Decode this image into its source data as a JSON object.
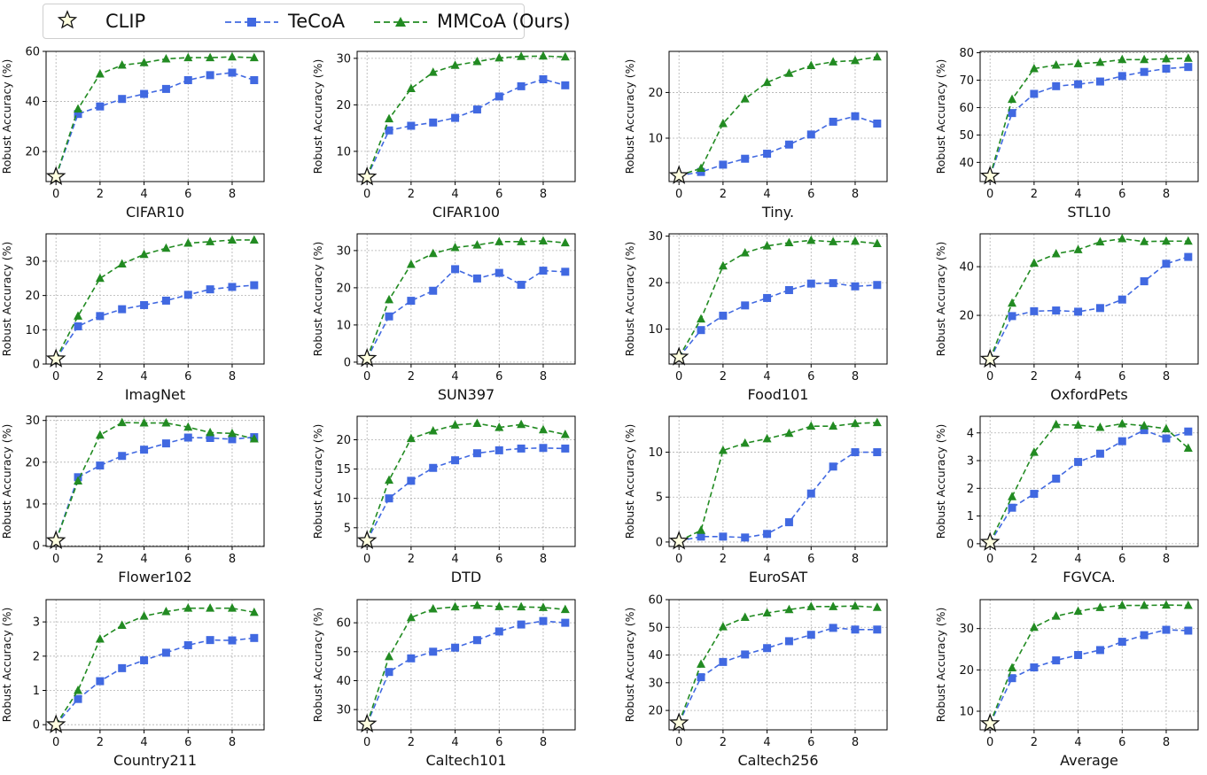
{
  "legend": {
    "clip": "CLIP",
    "tecoa": "TeCoA",
    "mmcoa": "MMCoA (Ours)"
  },
  "colors": {
    "tecoa": "#4169e1",
    "mmcoa": "#228b22",
    "clip_fill": "#ffffe0",
    "grid": "#b0b0b0"
  },
  "ylabel": "Robust Accuracy (%)",
  "chart_data": [
    {
      "type": "line",
      "title": "CIFAR10",
      "xlabel": "CIFAR10",
      "ylabel": "Robust Accuracy (%)",
      "x": [
        0,
        1,
        2,
        3,
        4,
        5,
        6,
        7,
        8,
        9
      ],
      "xlim": [
        -0.45,
        9.45
      ],
      "xticks": [
        0,
        2,
        4,
        6,
        8
      ],
      "ylim": [
        8,
        60
      ],
      "yticks": [
        20,
        40,
        60
      ],
      "clip": 10,
      "series": [
        {
          "name": "TeCoA",
          "values": [
            10,
            35,
            38,
            41,
            43,
            45,
            48.5,
            50.5,
            51.5,
            48.5
          ]
        },
        {
          "name": "MMCoA (Ours)",
          "values": [
            10,
            37,
            51,
            54.5,
            55.5,
            57,
            57.5,
            57.5,
            57.8,
            57.5
          ]
        }
      ]
    },
    {
      "type": "line",
      "title": "CIFAR100",
      "xlabel": "CIFAR100",
      "ylabel": "Robust Accuracy (%)",
      "x": [
        0,
        1,
        2,
        3,
        4,
        5,
        6,
        7,
        8,
        9
      ],
      "xlim": [
        -0.45,
        9.45
      ],
      "xticks": [
        0,
        2,
        4,
        6,
        8
      ],
      "ylim": [
        3.5,
        31.5
      ],
      "yticks": [
        10,
        20,
        30
      ],
      "clip": 4.5,
      "series": [
        {
          "name": "TeCoA",
          "values": [
            4.5,
            14.5,
            15.5,
            16.2,
            17.2,
            19,
            21.8,
            24,
            25.5,
            24.2
          ]
        },
        {
          "name": "MMCoA (Ours)",
          "values": [
            4.5,
            17,
            23.5,
            27,
            28.5,
            29.3,
            30.1,
            30.4,
            30.5,
            30.3
          ]
        }
      ]
    },
    {
      "type": "line",
      "title": "Tiny.",
      "xlabel": "Tiny.",
      "ylabel": "Robust Accuracy (%)",
      "x": [
        0,
        1,
        2,
        3,
        4,
        5,
        6,
        7,
        8,
        9
      ],
      "xlim": [
        -0.45,
        9.45
      ],
      "xticks": [
        0,
        2,
        4,
        6,
        8
      ],
      "ylim": [
        0.5,
        29
      ],
      "yticks": [
        10,
        20
      ],
      "clip": 1.8,
      "series": [
        {
          "name": "TeCoA",
          "values": [
            1.8,
            2.6,
            4.2,
            5.5,
            6.6,
            8.6,
            10.8,
            13.6,
            14.8,
            13.2
          ]
        },
        {
          "name": "MMCoA (Ours)",
          "values": [
            1.8,
            3.4,
            13.2,
            18.6,
            22.2,
            24.2,
            25.9,
            26.7,
            27,
            27.8
          ]
        }
      ]
    },
    {
      "type": "line",
      "title": "STL10",
      "xlabel": "STL10",
      "ylabel": "Robust Accuracy (%)",
      "x": [
        0,
        1,
        2,
        3,
        4,
        5,
        6,
        7,
        8,
        9
      ],
      "xlim": [
        -0.45,
        9.45
      ],
      "xticks": [
        0,
        2,
        4,
        6,
        8
      ],
      "ylim": [
        33,
        80.5
      ],
      "yticks": [
        40,
        50,
        60,
        70,
        80
      ],
      "clip": 35,
      "series": [
        {
          "name": "TeCoA",
          "values": [
            35,
            58,
            65,
            67.8,
            68.5,
            69.5,
            71.5,
            73,
            74.2,
            74.8
          ]
        },
        {
          "name": "MMCoA (Ours)",
          "values": [
            35,
            63,
            74.2,
            75.5,
            76,
            76.5,
            77.5,
            77.5,
            77.8,
            78
          ]
        }
      ]
    },
    {
      "type": "line",
      "title": "ImagNet",
      "xlabel": "ImagNet",
      "ylabel": "Robust Accuracy (%)",
      "x": [
        0,
        1,
        2,
        3,
        4,
        5,
        6,
        7,
        8,
        9
      ],
      "xlim": [
        -0.45,
        9.45
      ],
      "xticks": [
        0,
        2,
        4,
        6,
        8
      ],
      "ylim": [
        0,
        38
      ],
      "yticks": [
        0,
        10,
        20,
        30
      ],
      "clip": 1.5,
      "series": [
        {
          "name": "TeCoA",
          "values": [
            1.5,
            11,
            14,
            16,
            17.2,
            18.5,
            20.2,
            21.8,
            22.5,
            23
          ]
        },
        {
          "name": "MMCoA (Ours)",
          "values": [
            1.5,
            14,
            25,
            29.2,
            32,
            33.8,
            35.3,
            35.7,
            36.2,
            36.2
          ]
        }
      ]
    },
    {
      "type": "line",
      "title": "SUN397",
      "xlabel": "SUN397",
      "ylabel": "Robust Accuracy (%)",
      "x": [
        0,
        1,
        2,
        3,
        4,
        5,
        6,
        7,
        8,
        9
      ],
      "xlim": [
        -0.45,
        9.45
      ],
      "xticks": [
        0,
        2,
        4,
        6,
        8
      ],
      "ylim": [
        -0.5,
        34.5
      ],
      "yticks": [
        0,
        10,
        20,
        30
      ],
      "clip": 1.0,
      "series": [
        {
          "name": "TeCoA",
          "values": [
            1,
            12.3,
            16.5,
            19.2,
            25,
            22.5,
            24,
            20.8,
            24.6,
            24.3
          ]
        },
        {
          "name": "MMCoA (Ours)",
          "values": [
            1,
            16.8,
            26.3,
            29.2,
            30.8,
            31.5,
            32.4,
            32.4,
            32.6,
            32.1
          ]
        }
      ]
    },
    {
      "type": "line",
      "title": "Food101",
      "xlabel": "Food101",
      "ylabel": "Robust Accuracy (%)",
      "x": [
        0,
        1,
        2,
        3,
        4,
        5,
        6,
        7,
        8,
        9
      ],
      "xlim": [
        -0.45,
        9.45
      ],
      "xticks": [
        0,
        2,
        4,
        6,
        8
      ],
      "ylim": [
        2.5,
        30.5
      ],
      "yticks": [
        10,
        20,
        30
      ],
      "clip": 4,
      "series": [
        {
          "name": "TeCoA",
          "values": [
            4,
            9.8,
            12.9,
            15.1,
            16.7,
            18.4,
            19.8,
            19.9,
            19.2,
            19.5
          ]
        },
        {
          "name": "MMCoA (Ours)",
          "values": [
            4,
            12.2,
            23.6,
            26.4,
            27.9,
            28.6,
            29.1,
            28.8,
            28.9,
            28.4
          ]
        }
      ]
    },
    {
      "type": "line",
      "title": "OxfordPets",
      "xlabel": "OxfordPets",
      "ylabel": "Robust Accuracy (%)",
      "x": [
        0,
        1,
        2,
        3,
        4,
        5,
        6,
        7,
        8,
        9
      ],
      "xlim": [
        -0.45,
        9.45
      ],
      "xticks": [
        0,
        2,
        4,
        6,
        8
      ],
      "ylim": [
        0,
        53.5
      ],
      "yticks": [
        20,
        40
      ],
      "clip": 2,
      "series": [
        {
          "name": "TeCoA",
          "values": [
            2,
            19.7,
            21.7,
            22,
            21.5,
            23,
            26.5,
            34,
            41.2,
            44
          ]
        },
        {
          "name": "MMCoA (Ours)",
          "values": [
            2,
            25,
            41.5,
            45.3,
            47,
            50.2,
            51.5,
            50.3,
            50.5,
            50.5
          ]
        }
      ]
    },
    {
      "type": "line",
      "title": "Flower102",
      "xlabel": "Flower102",
      "ylabel": "Robust Accuracy (%)",
      "x": [
        0,
        1,
        2,
        3,
        4,
        5,
        6,
        7,
        8,
        9
      ],
      "xlim": [
        -0.45,
        9.45
      ],
      "xticks": [
        0,
        2,
        4,
        6,
        8
      ],
      "ylim": [
        -0.2,
        31
      ],
      "yticks": [
        0,
        10,
        20,
        30
      ],
      "clip": 1.2,
      "series": [
        {
          "name": "TeCoA",
          "values": [
            1.2,
            16.4,
            19.2,
            21.5,
            23,
            24.5,
            25.9,
            25.8,
            25.5,
            26
          ]
        },
        {
          "name": "MMCoA (Ours)",
          "values": [
            1.2,
            15.5,
            26.5,
            29.5,
            29.4,
            29.4,
            28.4,
            27.1,
            26.9,
            25.6
          ]
        }
      ]
    },
    {
      "type": "line",
      "title": "DTD",
      "xlabel": "DTD",
      "ylabel": "Robust Accuracy (%)",
      "x": [
        0,
        1,
        2,
        3,
        4,
        5,
        6,
        7,
        8,
        9
      ],
      "xlim": [
        -0.45,
        9.45
      ],
      "xticks": [
        0,
        2,
        4,
        6,
        8
      ],
      "ylim": [
        1.8,
        24
      ],
      "yticks": [
        5,
        10,
        15,
        20
      ],
      "clip": 2.8,
      "series": [
        {
          "name": "TeCoA",
          "values": [
            2.8,
            10,
            13,
            15.2,
            16.5,
            17.7,
            18.2,
            18.5,
            18.6,
            18.5
          ]
        },
        {
          "name": "MMCoA (Ours)",
          "values": [
            2.8,
            13.1,
            20.2,
            21.5,
            22.5,
            22.8,
            22.1,
            22.6,
            21.7,
            20.9
          ]
        }
      ]
    },
    {
      "type": "line",
      "title": "EuroSAT",
      "xlabel": "EuroSAT",
      "ylabel": "Robust Accuracy (%)",
      "x": [
        0,
        1,
        2,
        3,
        4,
        5,
        6,
        7,
        8,
        9
      ],
      "xlim": [
        -0.45,
        9.45
      ],
      "xticks": [
        0,
        2,
        4,
        6,
        8
      ],
      "ylim": [
        -0.5,
        14
      ],
      "yticks": [
        0,
        5,
        10
      ],
      "clip": 0.1,
      "series": [
        {
          "name": "TeCoA",
          "values": [
            0.1,
            0.6,
            0.6,
            0.5,
            0.9,
            2.2,
            5.4,
            8.4,
            10,
            10
          ]
        },
        {
          "name": "MMCoA (Ours)",
          "values": [
            0.1,
            1.3,
            10.2,
            11,
            11.5,
            12.1,
            12.9,
            12.9,
            13.2,
            13.3
          ]
        }
      ]
    },
    {
      "type": "line",
      "title": "FGVCA.",
      "xlabel": "FGVCA.",
      "ylabel": "Robust Accuracy (%)",
      "x": [
        0,
        1,
        2,
        3,
        4,
        5,
        6,
        7,
        8,
        9
      ],
      "xlim": [
        -0.45,
        9.45
      ],
      "xticks": [
        0,
        2,
        4,
        6,
        8
      ],
      "ylim": [
        -0.1,
        4.6
      ],
      "yticks": [
        0,
        1,
        2,
        3,
        4
      ],
      "clip": 0.05,
      "series": [
        {
          "name": "TeCoA",
          "values": [
            0.05,
            1.3,
            1.8,
            2.35,
            2.95,
            3.25,
            3.7,
            4.1,
            3.8,
            4.05
          ]
        },
        {
          "name": "MMCoA (Ours)",
          "values": [
            0.05,
            1.7,
            3.3,
            4.3,
            4.28,
            4.2,
            4.33,
            4.26,
            4.15,
            3.45
          ]
        }
      ]
    },
    {
      "type": "line",
      "title": "Country211",
      "xlabel": "Country211",
      "ylabel": "Robust Accuracy (%)",
      "x": [
        0,
        1,
        2,
        3,
        4,
        5,
        6,
        7,
        8,
        9
      ],
      "xlim": [
        -0.45,
        9.45
      ],
      "xticks": [
        0,
        2,
        4,
        6,
        8
      ],
      "ylim": [
        -0.15,
        3.65
      ],
      "yticks": [
        0,
        1,
        2,
        3
      ],
      "clip": 0.0,
      "series": [
        {
          "name": "TeCoA",
          "values": [
            0,
            0.75,
            1.27,
            1.65,
            1.88,
            2.1,
            2.32,
            2.47,
            2.46,
            2.53
          ]
        },
        {
          "name": "MMCoA (Ours)",
          "values": [
            0,
            1,
            2.5,
            2.9,
            3.17,
            3.3,
            3.4,
            3.4,
            3.4,
            3.28
          ]
        }
      ]
    },
    {
      "type": "line",
      "title": "Caltech101",
      "xlabel": "Caltech101",
      "ylabel": "Robust Accuracy (%)",
      "x": [
        0,
        1,
        2,
        3,
        4,
        5,
        6,
        7,
        8,
        9
      ],
      "xlim": [
        -0.45,
        9.45
      ],
      "xticks": [
        0,
        2,
        4,
        6,
        8
      ],
      "ylim": [
        23,
        68
      ],
      "yticks": [
        30,
        40,
        50,
        60
      ],
      "clip": 25,
      "series": [
        {
          "name": "TeCoA",
          "values": [
            25,
            43,
            47.7,
            50,
            51.4,
            54,
            57,
            59.4,
            60.6,
            60
          ]
        },
        {
          "name": "MMCoA (Ours)",
          "values": [
            25,
            48.3,
            61.8,
            64.8,
            65.5,
            66,
            65.6,
            65.5,
            65.3,
            64.6
          ]
        }
      ]
    },
    {
      "type": "line",
      "title": "Caltech256",
      "xlabel": "Caltech256",
      "ylabel": "Robust Accuracy (%)",
      "x": [
        0,
        1,
        2,
        3,
        4,
        5,
        6,
        7,
        8,
        9
      ],
      "xlim": [
        -0.45,
        9.45
      ],
      "xticks": [
        0,
        2,
        4,
        6,
        8
      ],
      "ylim": [
        13,
        60
      ],
      "yticks": [
        20,
        30,
        40,
        50,
        60
      ],
      "clip": 15.5,
      "series": [
        {
          "name": "TeCoA",
          "values": [
            15.5,
            32,
            37.5,
            40.2,
            42.5,
            45,
            47.3,
            49.8,
            49.2,
            49.2
          ]
        },
        {
          "name": "MMCoA (Ours)",
          "values": [
            15.5,
            36.7,
            50.2,
            53.6,
            55.2,
            56.4,
            57.5,
            57.5,
            57.7,
            57.2
          ]
        }
      ]
    },
    {
      "type": "line",
      "title": "Average",
      "xlabel": "Average",
      "ylabel": "Robust Accuracy (%)",
      "x": [
        0,
        1,
        2,
        3,
        4,
        5,
        6,
        7,
        8,
        9
      ],
      "xlim": [
        -0.45,
        9.45
      ],
      "xticks": [
        0,
        2,
        4,
        6,
        8
      ],
      "ylim": [
        5.5,
        37
      ],
      "yticks": [
        10,
        20,
        30
      ],
      "clip": 7,
      "series": [
        {
          "name": "TeCoA",
          "values": [
            7,
            18,
            20.6,
            22.3,
            23.6,
            24.8,
            26.8,
            28.4,
            29.7,
            29.5
          ]
        },
        {
          "name": "MMCoA (Ours)",
          "values": [
            7,
            20.5,
            30.3,
            33,
            34.2,
            35.1,
            35.6,
            35.6,
            35.7,
            35.6
          ]
        }
      ]
    }
  ]
}
